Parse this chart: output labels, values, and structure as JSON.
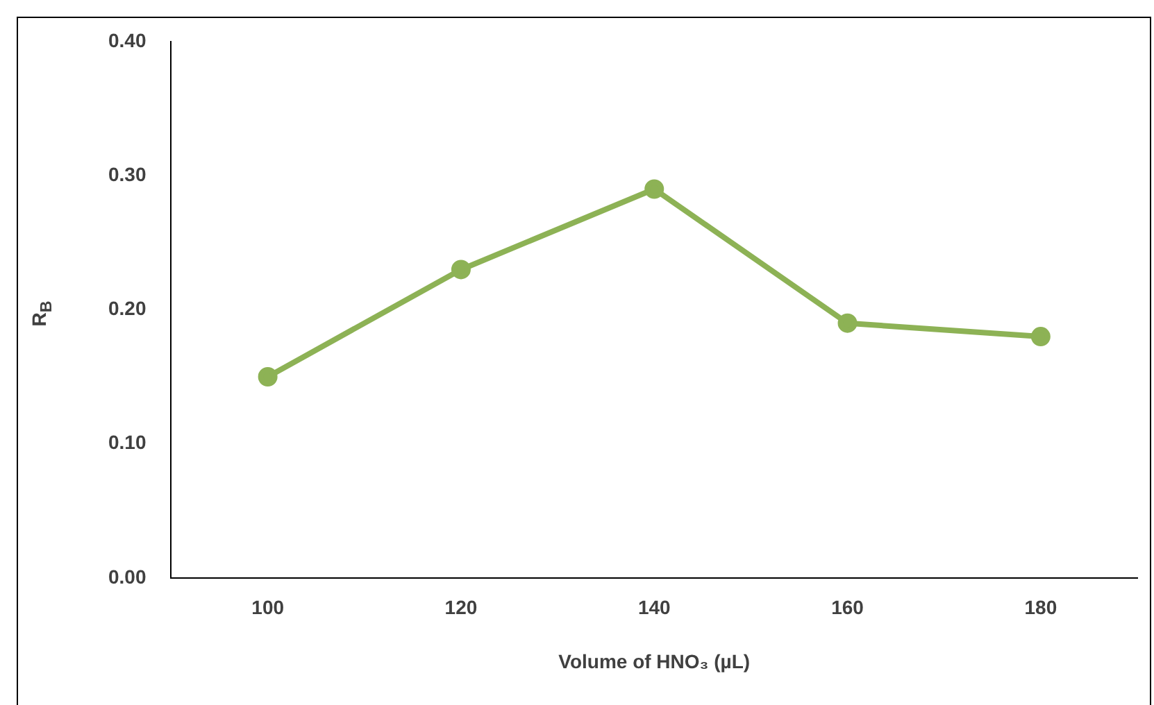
{
  "chart_data": {
    "type": "line",
    "xlabel": "Volume of HNO₃ (µL)",
    "ylabel": "R$_{B}$",
    "categories": [
      "100",
      "120",
      "140",
      "160",
      "180"
    ],
    "series": [
      {
        "color": "#8db255",
        "values": [
          0.15,
          0.23,
          0.29,
          0.19,
          0.18
        ]
      }
    ],
    "ylim": [
      0,
      0.4
    ],
    "yticks": [
      {
        "value": 0,
        "label": "0.00"
      },
      {
        "value": 0.1,
        "label": "0.10"
      },
      {
        "value": 0.2,
        "label": "0.20"
      },
      {
        "value": 0.3,
        "label": "0.30"
      },
      {
        "value": 0.4,
        "label": "0.40"
      }
    ],
    "grid": false,
    "legend": false,
    "marker": "circle",
    "line_style": "solid"
  }
}
